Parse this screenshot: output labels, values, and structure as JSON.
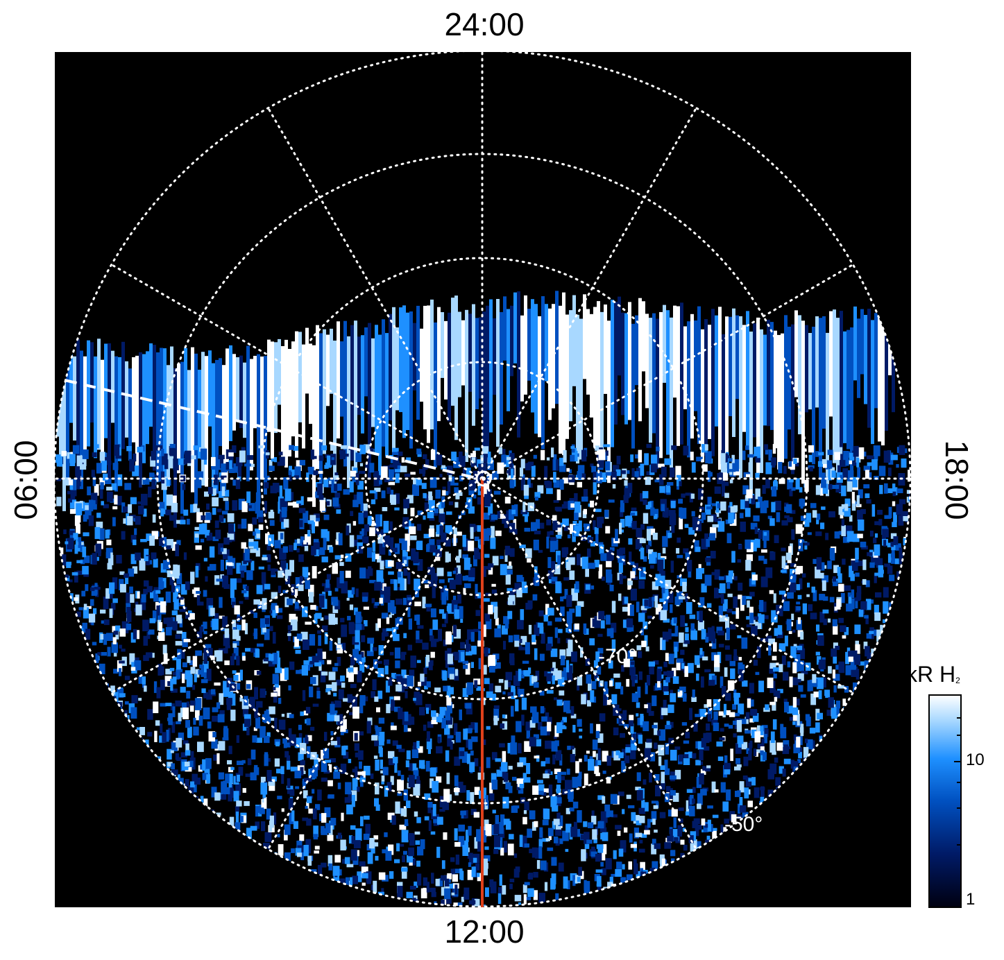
{
  "image": {
    "description_type": "polar projection auroral image",
    "colors": {
      "background": "#000000",
      "grid": "#ffffff",
      "meridian_line": "#e0401a",
      "colormap": [
        "#000010",
        "#001a66",
        "#0050c0",
        "#1e90ff",
        "#a8d8ff",
        "#ffffff"
      ]
    }
  },
  "labels": {
    "top": "24:00",
    "bottom": "12:00",
    "left": "06:00",
    "right": "18:00",
    "lat_70": "-70°",
    "lat_50": "-50°"
  },
  "colorbar": {
    "title_main": "kR H",
    "title_sub": "2",
    "tick_high": "10",
    "tick_low": "1",
    "scale": "log",
    "range": [
      1,
      30
    ]
  }
}
